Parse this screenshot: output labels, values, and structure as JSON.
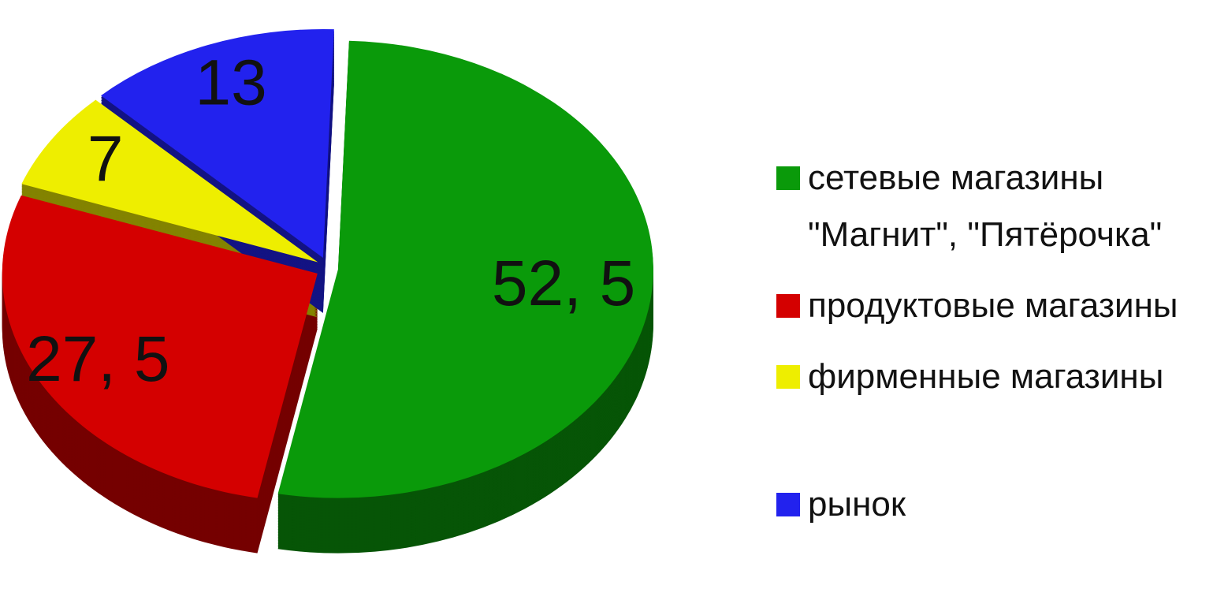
{
  "chart_data": {
    "type": "pie",
    "categories": [
      "сетевые магазины \"Магнит\", \"Пятёрочка\"",
      "продуктовые магазины",
      "фирменные магазины",
      "рынок"
    ],
    "values": [
      52.5,
      27.5,
      7,
      13
    ],
    "value_labels": [
      "52, 5",
      "27, 5",
      "7",
      "13"
    ],
    "colors": [
      "#0a9a0a",
      "#d40000",
      "#eeee00",
      "#2222ee"
    ],
    "legend": "right"
  }
}
